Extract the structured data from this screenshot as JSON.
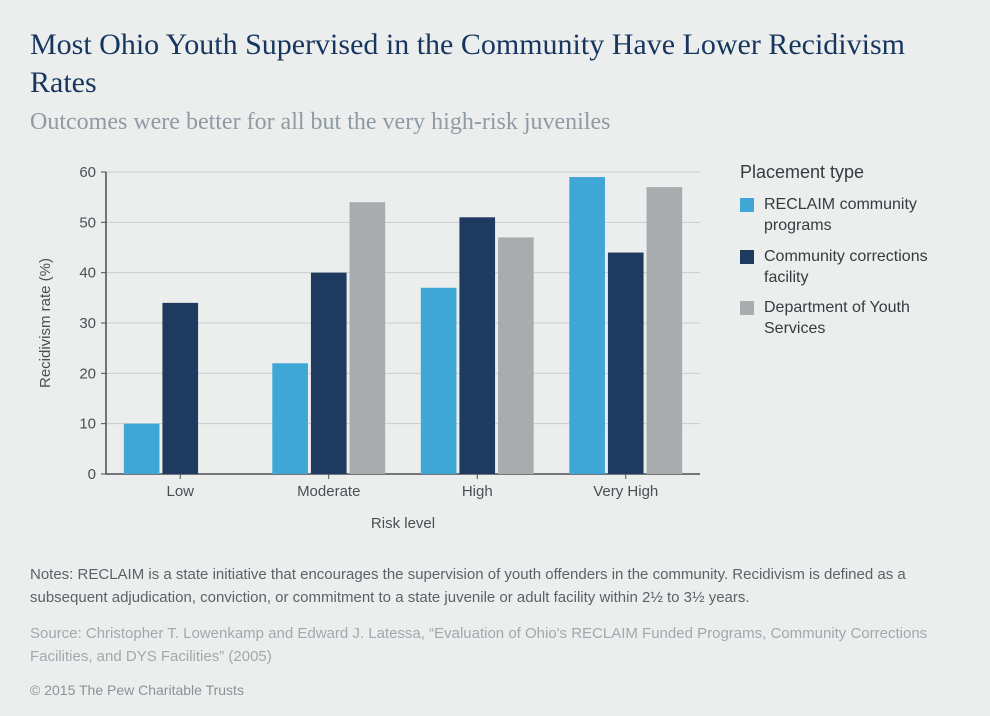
{
  "title": "Most Ohio Youth Supervised in the Community Have Lower Recidivism Rates",
  "subtitle": "Outcomes were better for all but the very high-risk juveniles",
  "chart": {
    "type": "bar-grouped",
    "background_color": "#eceeee",
    "plot_bg": "#eceeee",
    "axis_color": "#4a4f53",
    "grid_color": "#c9cdd0",
    "tick_label_color": "#4a4f53",
    "tick_fontsize": 15,
    "axis_label_fontsize": 15,
    "ylabel": "Recidivism  rate (%)",
    "xlabel": "Risk level",
    "ylim": [
      0,
      60
    ],
    "ytick_step": 10,
    "categories": [
      "Low",
      "Moderate",
      "High",
      "Very High"
    ],
    "series": [
      {
        "name": "RECLAIM community programs",
        "color": "#3fa7d6",
        "values": [
          10,
          22,
          37,
          59
        ]
      },
      {
        "name": "Community corrections facility",
        "color": "#1e3a5f",
        "values": [
          34,
          40,
          51,
          44
        ]
      },
      {
        "name": "Department of Youth Services",
        "color": "#a9acaf",
        "values": [
          null,
          54,
          47,
          57
        ]
      }
    ],
    "bar_width_ratio": 0.24,
    "bar_gap_ratio": 0.02,
    "group_pad_ratio": 0.12
  },
  "legend": {
    "title": "Placement type",
    "swatch_size": 14
  },
  "notes": "Notes: RECLAIM is a state initiative that encourages the supervision of youth offenders in the community. Recidivism is defined as a subsequent adjudication, conviction, or commitment to a state juvenile or adult facility within 2½ to 3½ years.",
  "source": "Source: Christopher T. Lowenkamp and Edward J. Latessa, “Evaluation of Ohio's RECLAIM Funded Programs, Community Corrections Facilities, and DYS Facilities” (2005)",
  "copyright": "© 2015 The Pew Charitable Trusts"
}
